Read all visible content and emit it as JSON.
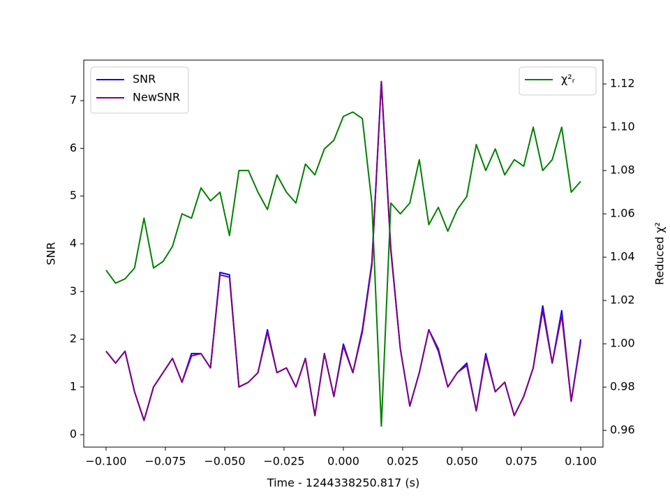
{
  "chart_data": {
    "type": "line",
    "xlabel": "Time - 1244338250.817 (s)",
    "ylabel": "SNR",
    "y2label": "Reduced χ²",
    "x": [
      -0.1,
      -0.096,
      -0.092,
      -0.088,
      -0.084,
      -0.08,
      -0.076,
      -0.072,
      -0.068,
      -0.064,
      -0.06,
      -0.056,
      -0.052,
      -0.048,
      -0.044,
      -0.04,
      -0.036,
      -0.032,
      -0.028,
      -0.024,
      -0.02,
      -0.016,
      -0.012,
      -0.008,
      -0.004,
      0,
      0.004,
      0.008,
      0.012,
      0.016,
      0.02,
      0.024,
      0.028,
      0.032,
      0.036,
      0.04,
      0.044,
      0.048,
      0.052,
      0.056,
      0.06,
      0.064,
      0.068,
      0.072,
      0.076,
      0.08,
      0.084,
      0.088,
      0.092,
      0.096,
      0.1
    ],
    "series": [
      {
        "name": "SNR",
        "color": "#0000ff",
        "axis": "y",
        "values": [
          1.75,
          1.5,
          1.75,
          0.9,
          0.3,
          1.0,
          1.3,
          1.6,
          1.1,
          1.7,
          1.7,
          1.4,
          3.4,
          3.35,
          1.0,
          1.1,
          1.3,
          2.2,
          1.3,
          1.4,
          1.0,
          1.6,
          0.4,
          1.7,
          0.8,
          1.9,
          1.3,
          2.2,
          3.6,
          7.4,
          3.9,
          1.8,
          0.6,
          1.3,
          2.2,
          1.8,
          1.0,
          1.3,
          1.5,
          0.5,
          1.7,
          0.9,
          1.1,
          0.4,
          0.8,
          1.4,
          2.7,
          1.5,
          2.6,
          0.7,
          2.0
        ]
      },
      {
        "name": "NewSNR",
        "color": "#800080",
        "axis": "y",
        "values": [
          1.75,
          1.5,
          1.75,
          0.9,
          0.3,
          1.0,
          1.3,
          1.6,
          1.1,
          1.65,
          1.7,
          1.4,
          3.35,
          3.3,
          1.0,
          1.1,
          1.3,
          2.15,
          1.3,
          1.4,
          1.0,
          1.6,
          0.4,
          1.7,
          0.8,
          1.85,
          1.3,
          2.15,
          3.55,
          7.4,
          3.85,
          1.8,
          0.6,
          1.3,
          2.2,
          1.75,
          1.0,
          1.3,
          1.45,
          0.5,
          1.65,
          0.9,
          1.1,
          0.4,
          0.8,
          1.4,
          2.6,
          1.5,
          2.5,
          0.7,
          1.95
        ]
      },
      {
        "name": "χ²ᵣ",
        "color": "#008000",
        "axis": "y2",
        "values": [
          1.034,
          1.028,
          1.03,
          1.035,
          1.058,
          1.035,
          1.038,
          1.045,
          1.06,
          1.058,
          1.072,
          1.066,
          1.07,
          1.05,
          1.08,
          1.08,
          1.07,
          1.062,
          1.078,
          1.07,
          1.065,
          1.083,
          1.078,
          1.09,
          1.094,
          1.105,
          1.107,
          1.104,
          1.065,
          0.962,
          1.065,
          1.06,
          1.065,
          1.085,
          1.055,
          1.063,
          1.052,
          1.062,
          1.068,
          1.092,
          1.08,
          1.09,
          1.078,
          1.085,
          1.082,
          1.1,
          1.08,
          1.085,
          1.1,
          1.07,
          1.075
        ]
      }
    ],
    "xlim": [
      -0.1094,
      0.1094
    ],
    "xticks": [
      {
        "value": -0.1,
        "label": "−0.100"
      },
      {
        "value": -0.075,
        "label": "−0.075"
      },
      {
        "value": -0.05,
        "label": "−0.050"
      },
      {
        "value": -0.025,
        "label": "−0.025"
      },
      {
        "value": 0,
        "label": "0.000"
      },
      {
        "value": 0.025,
        "label": "0.025"
      },
      {
        "value": 0.05,
        "label": "0.050"
      },
      {
        "value": 0.075,
        "label": "0.075"
      },
      {
        "value": 0.1,
        "label": "0.100"
      }
    ],
    "ylim": [
      -0.26,
      7.85
    ],
    "yticks": [
      0,
      1,
      2,
      3,
      4,
      5,
      6,
      7
    ],
    "y2lim": [
      0.9523,
      1.131
    ],
    "y2ticks": [
      0.96,
      0.98,
      {
        "value": 1.0,
        "label": "1.00"
      },
      1.02,
      1.04,
      1.06,
      1.08,
      {
        "value": 1.1,
        "label": "1.10"
      },
      1.12
    ],
    "legend": "upper left",
    "legend2": "upper right"
  }
}
